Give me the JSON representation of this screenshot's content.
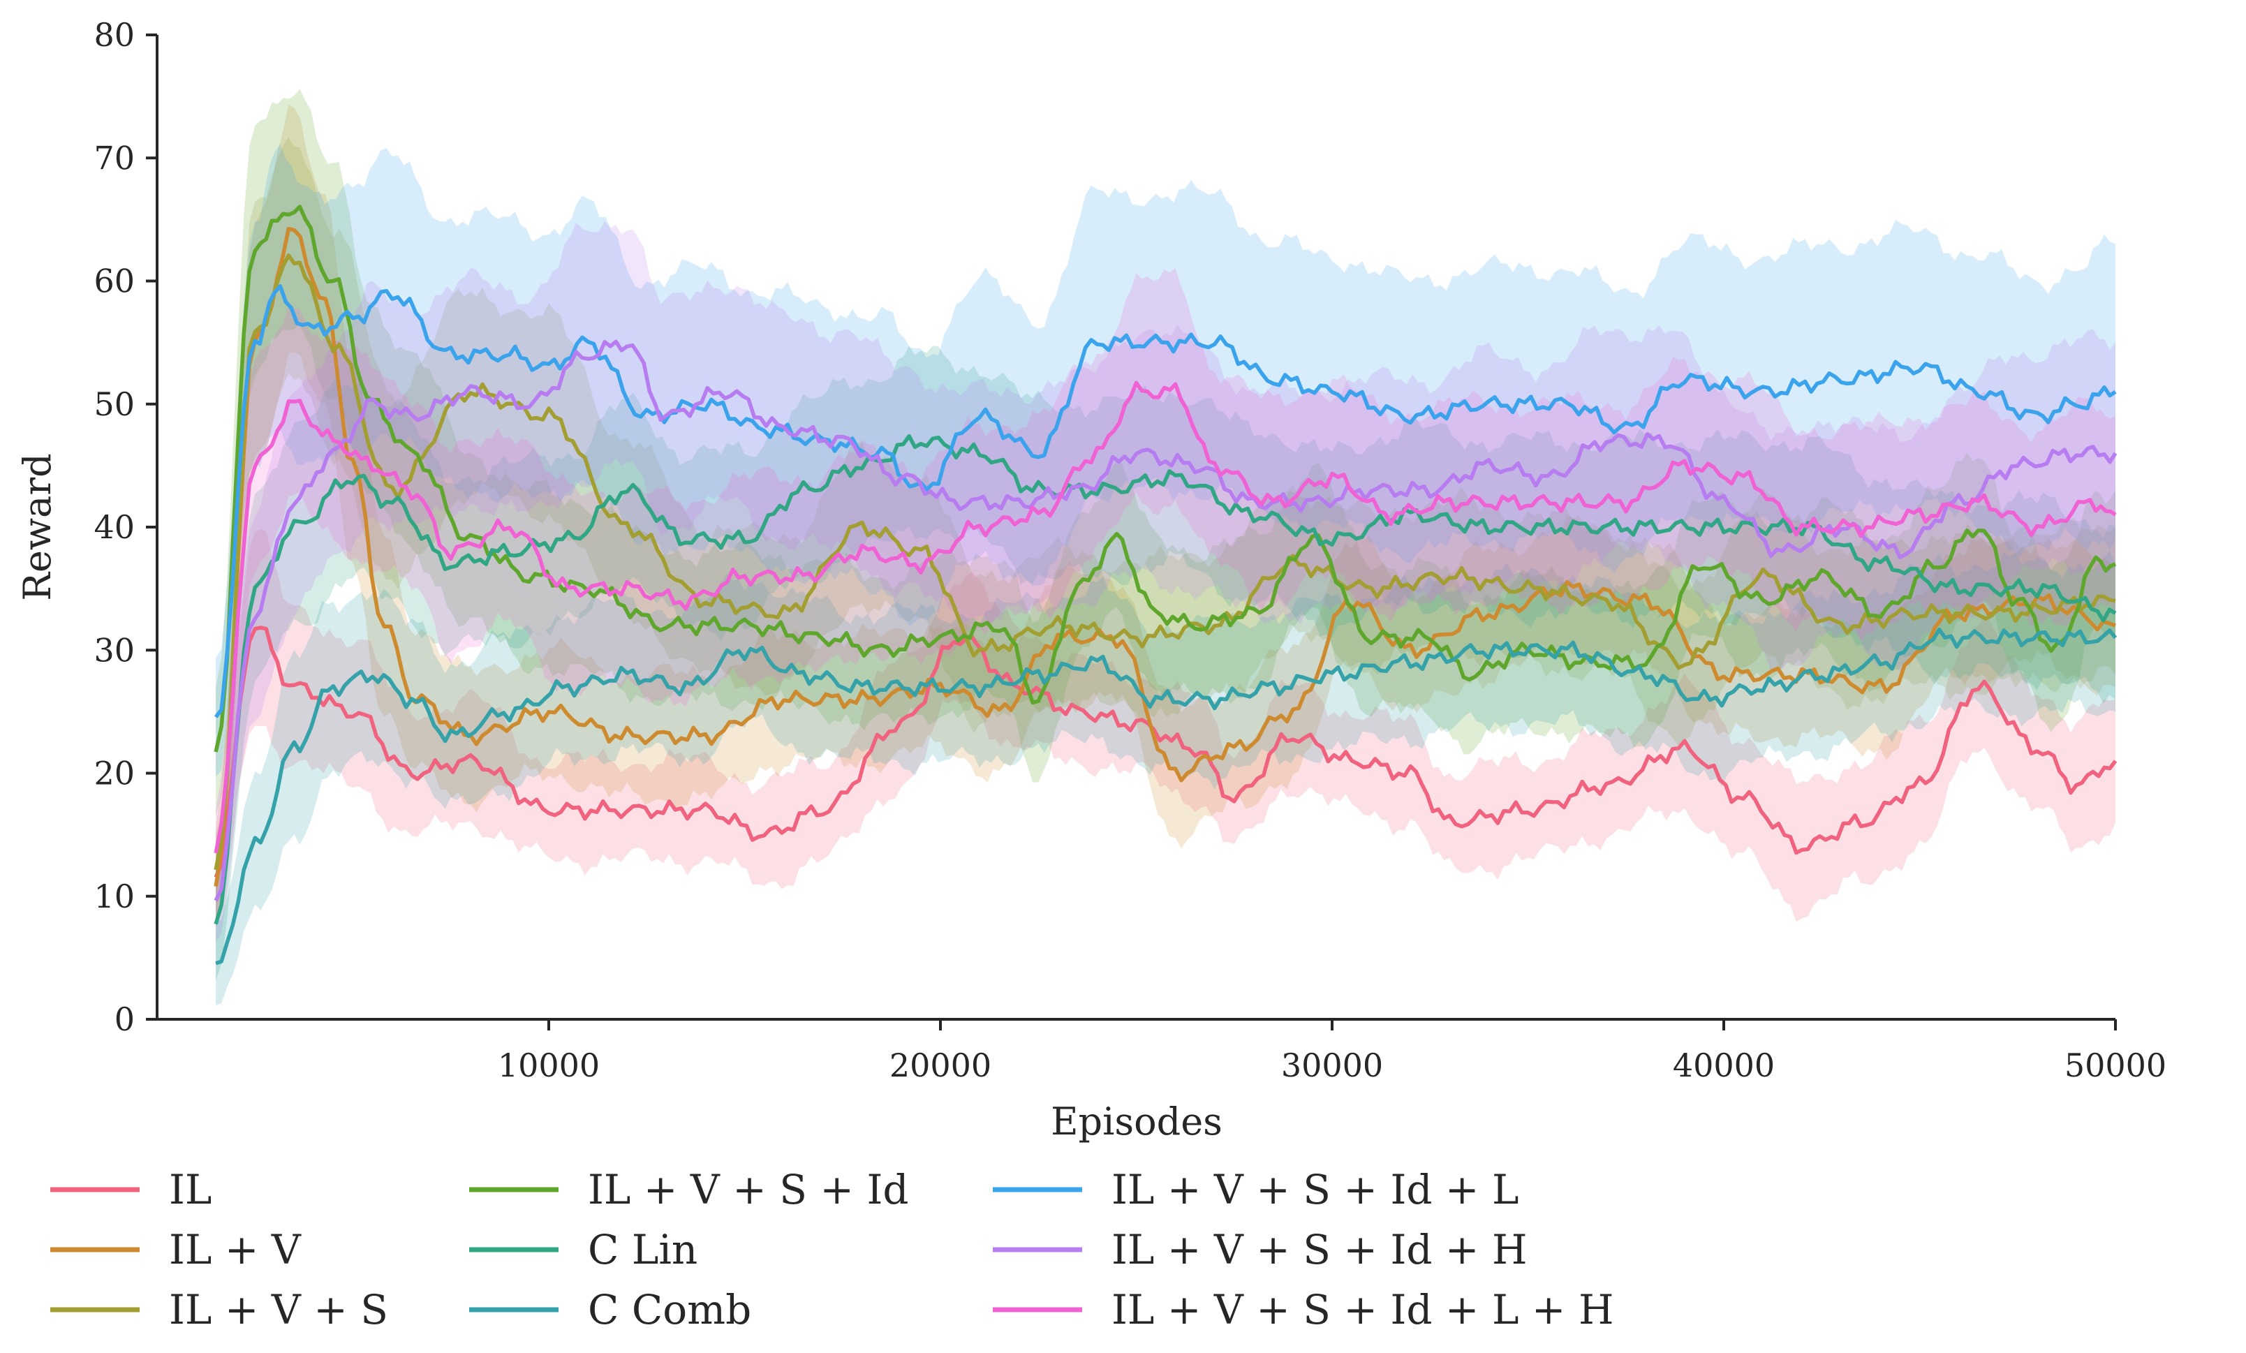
{
  "chart_data": {
    "type": "line",
    "title": "",
    "xlabel": "Episodes",
    "ylabel": "Reward",
    "xlim": [
      0,
      50000
    ],
    "ylim": [
      0,
      80
    ],
    "xticks": [
      10000,
      20000,
      30000,
      40000,
      50000
    ],
    "yticks": [
      0,
      10,
      20,
      30,
      40,
      50,
      60,
      70,
      80
    ],
    "grid": false,
    "legend": "bottom",
    "band": "shaded variability band around each mean line",
    "series": [
      {
        "name": "IL",
        "color": "#f0627e",
        "x": [
          1500,
          2500,
          3500,
          5000,
          6500,
          8000,
          10000,
          12000,
          14000,
          15500,
          17000,
          19000,
          20500,
          22000,
          23500,
          25000,
          26500,
          27500,
          29000,
          30500,
          32000,
          33000,
          35000,
          37000,
          39000,
          40500,
          42000,
          43500,
          45000,
          46500,
          48000,
          49000,
          50000
        ],
        "y": [
          12,
          32,
          27,
          25,
          20,
          21,
          17,
          17,
          17,
          15,
          17,
          24,
          31,
          27,
          25,
          24,
          22,
          18,
          23,
          21,
          20,
          16,
          17,
          19,
          22,
          18,
          14,
          16,
          19,
          27,
          22,
          19,
          21
        ],
        "band": [
          4,
          8,
          6,
          6,
          5,
          5,
          4,
          4,
          4,
          4,
          4,
          5,
          5,
          5,
          4,
          4,
          4,
          4,
          4,
          4,
          4,
          4,
          4,
          4,
          5,
          5,
          5,
          5,
          5,
          5,
          5,
          5,
          5
        ]
      },
      {
        "name": "IL + V",
        "color": "#ce8a2e",
        "x": [
          1500,
          2500,
          3500,
          4300,
          5000,
          5800,
          6600,
          8000,
          10000,
          12000,
          14000,
          16000,
          18000,
          20000,
          21500,
          23000,
          24500,
          26000,
          27500,
          29000,
          30500,
          32000,
          34000,
          36000,
          38000,
          40000,
          42000,
          44000,
          46000,
          48000,
          50000
        ],
        "y": [
          11,
          55,
          64,
          58,
          45,
          32,
          26,
          23,
          25,
          23,
          23,
          26,
          26,
          27,
          25,
          31,
          31,
          20,
          22,
          25,
          34,
          30,
          33,
          35,
          34,
          28,
          28,
          27,
          33,
          34,
          32
        ],
        "band": [
          4,
          9,
          10,
          9,
          8,
          7,
          6,
          5,
          5,
          5,
          5,
          5,
          5,
          5,
          5,
          5,
          5,
          5,
          5,
          5,
          5,
          5,
          5,
          5,
          5,
          5,
          5,
          5,
          5,
          5,
          5
        ]
      },
      {
        "name": "IL + V + S",
        "color": "#a39e31",
        "x": [
          1500,
          2500,
          3500,
          4500,
          6000,
          8000,
          10000,
          12000,
          14000,
          16000,
          18000,
          19500,
          21000,
          23000,
          25000,
          27000,
          29000,
          31000,
          33000,
          35000,
          37000,
          39000,
          41000,
          43000,
          45000,
          47000,
          50000
        ],
        "y": [
          12,
          56,
          62,
          55,
          43,
          51,
          49,
          40,
          34,
          33,
          40,
          38,
          30,
          32,
          31,
          32,
          37,
          35,
          36,
          35,
          34,
          29,
          36,
          32,
          33,
          33,
          34
        ],
        "band": [
          4,
          10,
          10,
          9,
          8,
          8,
          8,
          7,
          6,
          6,
          6,
          6,
          6,
          6,
          6,
          6,
          6,
          6,
          6,
          6,
          6,
          6,
          6,
          6,
          6,
          6,
          6
        ]
      },
      {
        "name": "IL + V + S + Id",
        "color": "#5fa62d",
        "x": [
          1500,
          2500,
          3500,
          4500,
          5500,
          6500,
          8000,
          9500,
          11000,
          13000,
          15000,
          17000,
          18500,
          20000,
          21500,
          22500,
          23500,
          24500,
          25500,
          26500,
          28000,
          29500,
          31000,
          32500,
          33500,
          35000,
          36500,
          38000,
          39500,
          41000,
          42500,
          44000,
          45500,
          46500,
          47500,
          48500,
          49500,
          50000
        ],
        "y": [
          22,
          63,
          66,
          60,
          50,
          46,
          39,
          36,
          35,
          32,
          32,
          31,
          30,
          31,
          32,
          26,
          35,
          39,
          33,
          32,
          33,
          39,
          31,
          31,
          28,
          30,
          29,
          29,
          37,
          34,
          36,
          33,
          37,
          40,
          34,
          30,
          37,
          37
        ],
        "band": [
          5,
          10,
          10,
          9,
          8,
          8,
          7,
          7,
          7,
          6,
          6,
          6,
          6,
          6,
          6,
          6,
          6,
          6,
          6,
          6,
          6,
          6,
          6,
          6,
          6,
          6,
          6,
          6,
          6,
          6,
          6,
          6,
          6,
          6,
          6,
          6,
          6,
          6
        ]
      },
      {
        "name": "C Lin",
        "color": "#31a685",
        "x": [
          1500,
          2500,
          3500,
          5000,
          6000,
          7500,
          9000,
          10500,
          12000,
          13500,
          15000,
          16500,
          18000,
          19500,
          21000,
          22500,
          24000,
          26000,
          28000,
          30000,
          32000,
          34000,
          36000,
          38000,
          40000,
          42000,
          44000,
          46000,
          48000,
          50000
        ],
        "y": [
          8,
          35,
          40,
          44,
          42,
          37,
          38,
          39,
          43,
          39,
          39,
          43,
          45,
          47,
          46,
          43,
          43,
          44,
          41,
          39,
          41,
          40,
          40,
          40,
          40,
          40,
          37,
          35,
          35,
          33
        ],
        "band": [
          4,
          8,
          8,
          8,
          8,
          7,
          7,
          7,
          7,
          7,
          7,
          7,
          7,
          7,
          7,
          7,
          7,
          7,
          7,
          7,
          7,
          7,
          7,
          7,
          7,
          7,
          7,
          7,
          7,
          7
        ]
      },
      {
        "name": "C Comb",
        "color": "#34a2a8",
        "x": [
          1500,
          2500,
          3500,
          4500,
          5500,
          6500,
          7500,
          9000,
          10500,
          12000,
          13500,
          15000,
          16500,
          18000,
          19500,
          21000,
          22500,
          24000,
          25500,
          27000,
          28500,
          30000,
          32000,
          34000,
          36000,
          38000,
          39500,
          41000,
          42500,
          44000,
          45500,
          47000,
          48500,
          50000
        ],
        "y": [
          4,
          14,
          22,
          27,
          28,
          26,
          23,
          25,
          27,
          28,
          27,
          30,
          28,
          27,
          27,
          27,
          28,
          29,
          26,
          26,
          27,
          28,
          29,
          30,
          30,
          28,
          26,
          27,
          28,
          29,
          31,
          31,
          31,
          31
        ],
        "band": [
          3,
          6,
          7,
          7,
          7,
          6,
          6,
          6,
          6,
          6,
          6,
          6,
          6,
          6,
          6,
          6,
          6,
          6,
          6,
          6,
          6,
          6,
          6,
          6,
          6,
          6,
          6,
          6,
          6,
          6,
          6,
          6,
          6,
          6
        ]
      },
      {
        "name": "IL + V + S + Id + L",
        "color": "#3ba3ec",
        "x": [
          1500,
          2500,
          3000,
          4000,
          5000,
          6000,
          7500,
          9000,
          10000,
          11000,
          12500,
          14000,
          15500,
          17000,
          18500,
          19500,
          21000,
          22500,
          24000,
          25500,
          27000,
          28500,
          30000,
          32000,
          34000,
          36000,
          37500,
          39000,
          41000,
          43000,
          45000,
          46500,
          48000,
          49000,
          50000
        ],
        "y": [
          24,
          55,
          59,
          56,
          57,
          59,
          54,
          54,
          53,
          55,
          49,
          50,
          48,
          47,
          46,
          43,
          49,
          46,
          55,
          55,
          55,
          52,
          51,
          49,
          50,
          50,
          48,
          52,
          51,
          52,
          53,
          51,
          49,
          50,
          51
        ],
        "band": [
          5,
          10,
          11,
          11,
          11,
          11,
          11,
          11,
          11,
          11,
          11,
          11,
          11,
          11,
          11,
          11,
          11,
          11,
          12,
          12,
          12,
          11,
          11,
          11,
          11,
          11,
          11,
          11,
          11,
          11,
          11,
          11,
          11,
          11,
          12
        ]
      },
      {
        "name": "IL + V + S + Id + H",
        "color": "#b77df0",
        "x": [
          1500,
          2500,
          3500,
          4500,
          5500,
          6500,
          8000,
          9500,
          11000,
          12000,
          13000,
          14500,
          16000,
          17500,
          19000,
          20500,
          22000,
          23500,
          25000,
          26500,
          28000,
          29500,
          31000,
          32500,
          34000,
          35500,
          37000,
          38500,
          40000,
          41500,
          43000,
          44500,
          46000,
          47500,
          49000,
          50000
        ],
        "y": [
          10,
          33,
          42,
          46,
          50,
          49,
          51,
          50,
          54,
          55,
          49,
          51,
          48,
          47,
          44,
          42,
          42,
          43,
          46,
          45,
          42,
          42,
          43,
          43,
          45,
          44,
          47,
          47,
          42,
          38,
          40,
          38,
          42,
          45,
          46,
          46
        ],
        "band": [
          4,
          8,
          9,
          9,
          9,
          9,
          9,
          9,
          10,
          10,
          9,
          9,
          9,
          9,
          9,
          9,
          9,
          9,
          10,
          10,
          9,
          9,
          9,
          9,
          9,
          9,
          9,
          9,
          9,
          9,
          9,
          9,
          9,
          9,
          9,
          9
        ]
      },
      {
        "name": "IL + V + S + Id + L + H",
        "color": "#f062d3",
        "x": [
          1500,
          2500,
          3500,
          4500,
          5500,
          6500,
          7500,
          9000,
          10500,
          12000,
          13500,
          15000,
          16500,
          18000,
          19500,
          21000,
          22500,
          24000,
          25000,
          26000,
          27000,
          28500,
          30000,
          31500,
          33000,
          34500,
          36000,
          37500,
          39000,
          40500,
          42000,
          43500,
          45000,
          46500,
          48000,
          49500,
          50000
        ],
        "y": [
          14,
          45,
          50,
          47,
          45,
          43,
          38,
          40,
          35,
          35,
          34,
          36,
          36,
          38,
          37,
          40,
          41,
          46,
          51,
          51,
          45,
          42,
          44,
          41,
          42,
          42,
          42,
          42,
          45,
          44,
          40,
          40,
          41,
          42,
          40,
          42,
          41
        ],
        "band": [
          4,
          8,
          8,
          8,
          8,
          8,
          8,
          8,
          8,
          8,
          8,
          8,
          8,
          8,
          8,
          8,
          8,
          8,
          9,
          9,
          8,
          8,
          8,
          8,
          8,
          8,
          8,
          8,
          8,
          8,
          8,
          8,
          8,
          8,
          8,
          8,
          8
        ]
      }
    ]
  }
}
